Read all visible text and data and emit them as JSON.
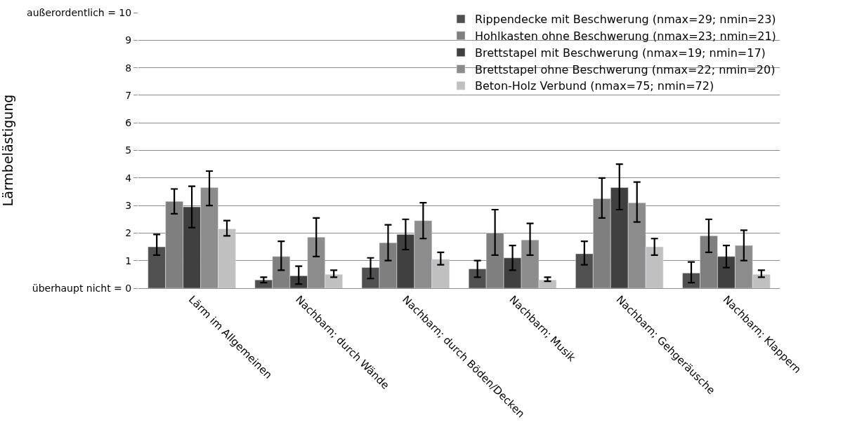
{
  "chart_data": {
    "type": "bar",
    "ylabel": "Lärmbelästigung",
    "categories": [
      "Lärm im Allgemeinen",
      "Nachbarn; durch Wände",
      "Nachbarn; durch Böden/Decken",
      "Nachbarn; Musik",
      "Nachbarn; Gehgeräusche",
      "Nachbarn; Klappern"
    ],
    "series": [
      {
        "name": "Rippendecke mit Beschwerung (nmax=29; nmin=23)",
        "color": "#505050",
        "values": [
          1.5,
          0.3,
          0.75,
          0.7,
          1.25,
          0.55
        ],
        "errors": [
          [
            1.2,
            1.95
          ],
          [
            0.2,
            0.4
          ],
          [
            0.35,
            1.1
          ],
          [
            0.4,
            1.0
          ],
          [
            0.85,
            1.7
          ],
          [
            0.2,
            0.95
          ]
        ]
      },
      {
        "name": "Hohlkasten ohne Beschwerung (nmax=23; nmin=21)",
        "color": "#7f7f7f",
        "values": [
          3.15,
          1.15,
          1.65,
          2.0,
          3.25,
          1.9
        ],
        "errors": [
          [
            2.7,
            3.6
          ],
          [
            0.65,
            1.7
          ],
          [
            1.0,
            2.3
          ],
          [
            1.2,
            2.85
          ],
          [
            2.55,
            4.0
          ],
          [
            1.3,
            2.5
          ]
        ]
      },
      {
        "name": "Brettstapel mit Beschwerung (nmax=19; nmin=17)",
        "color": "#404040",
        "values": [
          2.95,
          0.45,
          1.95,
          1.1,
          3.65,
          1.15
        ],
        "errors": [
          [
            2.2,
            3.7
          ],
          [
            0.15,
            0.8
          ],
          [
            1.4,
            2.5
          ],
          [
            0.65,
            1.55
          ],
          [
            2.85,
            4.5
          ],
          [
            0.75,
            1.55
          ]
        ]
      },
      {
        "name": "Brettstapel ohne Beschwerung (nmax=22; nmin=20)",
        "color": "#8c8c8c",
        "values": [
          3.65,
          1.85,
          2.45,
          1.75,
          3.1,
          1.55
        ],
        "errors": [
          [
            3.0,
            4.25
          ],
          [
            1.15,
            2.55
          ],
          [
            1.8,
            3.1
          ],
          [
            1.2,
            2.35
          ],
          [
            2.4,
            3.85
          ],
          [
            1.0,
            2.1
          ]
        ]
      },
      {
        "name": "Beton-Holz Verbund (nmax=75; nmin=72)",
        "color": "#c0c0c0",
        "values": [
          2.15,
          0.5,
          1.05,
          0.3,
          1.5,
          0.5
        ],
        "errors": [
          [
            1.9,
            2.45
          ],
          [
            0.4,
            0.65
          ],
          [
            0.85,
            1.3
          ],
          [
            0.25,
            0.4
          ],
          [
            1.2,
            1.8
          ],
          [
            0.4,
            0.65
          ]
        ]
      }
    ],
    "ylim": [
      0,
      10
    ],
    "yticks": [
      {
        "value": 0,
        "label": "überhaupt nicht = 0"
      },
      1,
      2,
      3,
      4,
      5,
      6,
      7,
      8,
      9,
      {
        "value": 10,
        "label": "außerordentlich = 10"
      }
    ],
    "grid": "y",
    "legend": "top right"
  }
}
